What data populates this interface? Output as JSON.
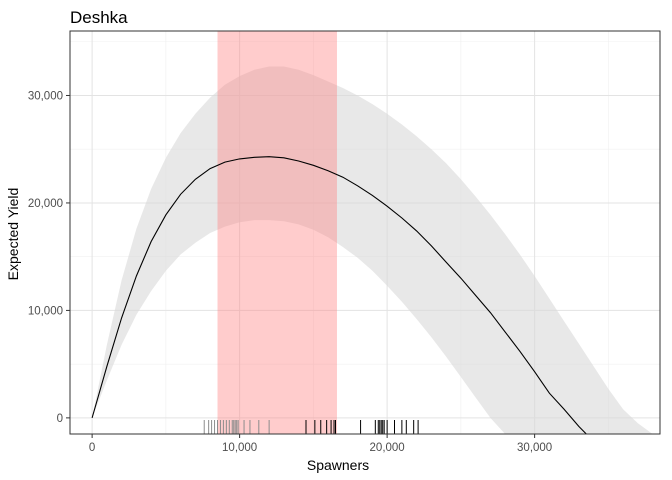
{
  "chart_data": {
    "type": "line",
    "title": "Deshka",
    "xlabel": "Spawners",
    "ylabel": "Expected Yield",
    "xlim": [
      -1500,
      38500
    ],
    "ylim": [
      -1500,
      36000
    ],
    "x_ticks": [
      0,
      10000,
      20000,
      30000
    ],
    "x_tick_labels": [
      "0",
      "10,000",
      "20,000",
      "30,000"
    ],
    "y_ticks": [
      0,
      10000,
      20000,
      30000
    ],
    "y_tick_labels": [
      "0",
      "10,000",
      "20,000",
      "30,000"
    ],
    "grid": true,
    "series": [
      {
        "role": "median-curve",
        "color": "#000000",
        "x": [
          0,
          1000,
          2000,
          3000,
          4000,
          5000,
          6000,
          7000,
          8000,
          9000,
          10000,
          11000,
          12000,
          13000,
          14000,
          15000,
          16000,
          17000,
          18000,
          19000,
          20000,
          21000,
          22000,
          23000,
          24000,
          25000,
          26000,
          27000,
          28000,
          29000,
          30000,
          31000,
          32000,
          33000,
          33500
        ],
        "y": [
          0,
          4800,
          9300,
          13200,
          16400,
          18900,
          20800,
          22200,
          23200,
          23800,
          24100,
          24250,
          24300,
          24200,
          23900,
          23500,
          23000,
          22400,
          21600,
          20700,
          19700,
          18600,
          17400,
          16000,
          14500,
          13000,
          11400,
          9800,
          8000,
          6200,
          4300,
          2300,
          800,
          -800,
          -1500
        ]
      }
    ],
    "credible_band": {
      "color": "#d9d9d9",
      "x": [
        0,
        1000,
        2000,
        3000,
        4000,
        5000,
        6000,
        7000,
        8000,
        9000,
        10000,
        11000,
        12000,
        13000,
        14000,
        15000,
        16000,
        17000,
        18000,
        19000,
        20000,
        21000,
        22000,
        23000,
        24000,
        25000,
        26000,
        27000,
        28000,
        29000,
        30000,
        31000,
        32000,
        33000,
        34000,
        35000,
        36000,
        37000,
        38000
      ],
      "lower": [
        0,
        3500,
        6800,
        9600,
        11800,
        13700,
        15200,
        16300,
        17200,
        17800,
        18200,
        18400,
        18400,
        18300,
        18000,
        17500,
        16800,
        15900,
        14900,
        13700,
        12300,
        10800,
        9200,
        7500,
        5700,
        3800,
        1900,
        0,
        -1500,
        -1500,
        -1500,
        -1500,
        -1500,
        -1500,
        -1500,
        -1500,
        -1500,
        -1500,
        -1500
      ],
      "upper": [
        0,
        6800,
        12800,
        17600,
        21300,
        24200,
        26500,
        28300,
        29800,
        31000,
        31800,
        32400,
        32700,
        32700,
        32400,
        31900,
        31300,
        30700,
        30000,
        29200,
        28300,
        27300,
        26200,
        25000,
        23700,
        22200,
        20600,
        18900,
        17100,
        15200,
        13200,
        11100,
        9000,
        6900,
        4800,
        2700,
        800,
        -500,
        -1500
      ]
    },
    "highlight_band": {
      "color": "#ff7f7f",
      "x_range": [
        8500,
        16600
      ]
    },
    "rug": {
      "grey": [
        7600,
        7900,
        8100,
        8300,
        8500,
        8700,
        8900,
        9100,
        9300,
        9500,
        9600,
        9700,
        9800,
        9900,
        10300,
        10700,
        11300,
        12000
      ],
      "black": [
        14500,
        15100,
        15500,
        15900,
        16200,
        16400,
        16500,
        18200,
        19200,
        19400,
        19500,
        19600,
        19700,
        19800,
        20000,
        20500,
        21000,
        21300,
        21800,
        22100
      ]
    }
  }
}
